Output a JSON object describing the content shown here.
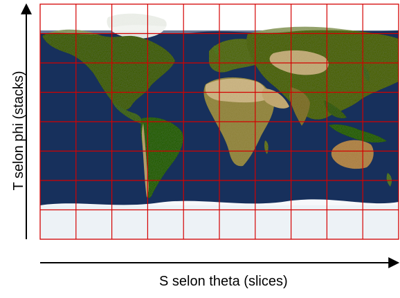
{
  "texture": {
    "ylabel": "T selon phi (stacks)",
    "xlabel": "S selon theta (slices)",
    "slices": 10,
    "stacks": 8,
    "colors": {
      "ocean": "#17305c",
      "land": "#52692f",
      "desert": "#c7b07d",
      "ice": "#edf2f6",
      "grid": "#d40000"
    }
  }
}
